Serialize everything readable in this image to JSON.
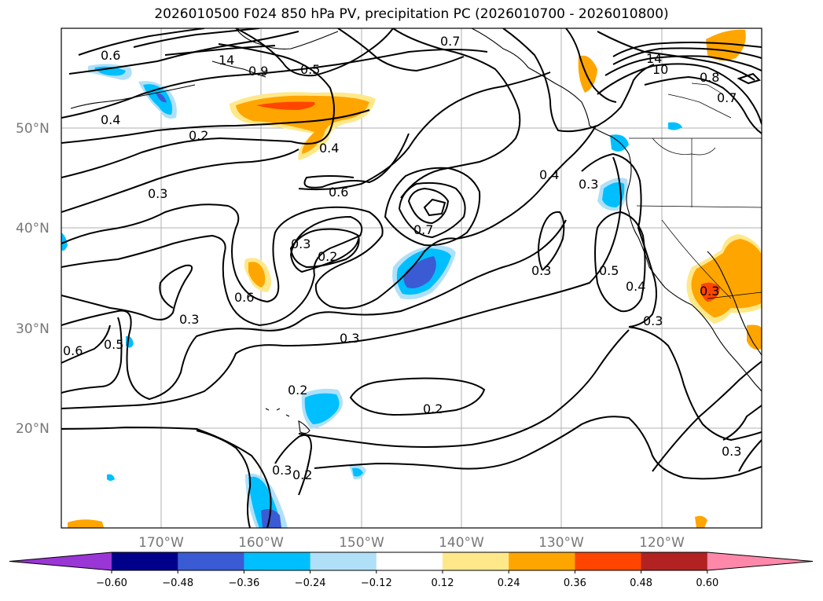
{
  "title": "2026010500 F024 850 hPa PV, precipitation PC (2026010700 - 2026010800)",
  "lat_labels": [
    "50°N",
    "40°N",
    "30°N",
    "20°N"
  ],
  "lon_labels": [
    "170°W",
    "160°W",
    "150°W",
    "140°W",
    "130°W",
    "120°W"
  ],
  "colorbar": {
    "levels": [
      "−0.60",
      "−0.48",
      "−0.36",
      "−0.24",
      "−0.12",
      "0.12",
      "0.24",
      "0.36",
      "0.48",
      "0.60"
    ],
    "colors": [
      "#9a35d6",
      "#00008b",
      "#3a5bd4",
      "#00bfff",
      "#b0e0f8",
      "#ffffff",
      "#ffe88a",
      "#ffa500",
      "#ff4500",
      "#b22222",
      "#ff88aa"
    ]
  },
  "contour_labels": [
    "0.6",
    "14",
    "0.9",
    "0.5",
    "0.7",
    "14",
    "10",
    "0.8",
    "0.7",
    "0.4",
    "0.2",
    "0.4",
    "0.3",
    "0.6",
    "0.3",
    "0.2",
    "0.7",
    "0.4",
    "0.3",
    "0.6",
    "0.3",
    "0.5",
    "0.4",
    "0.3",
    "0.3",
    "0.5",
    "0.6",
    "0.3",
    "0.2",
    "0.2",
    "0.3",
    "0.2",
    "0.3",
    "0.3"
  ],
  "precip_colors": {
    "orange": "#ffa500",
    "yellow": "#ffe88a",
    "red": "#ff4500",
    "sky": "#00bfff",
    "lightblue": "#b0e0f8",
    "blue": "#3a5bd4"
  }
}
